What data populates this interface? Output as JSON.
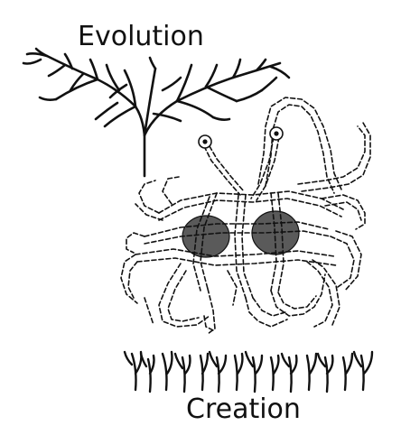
{
  "labels": {
    "top": "Evolution",
    "bottom": "Creation"
  },
  "colors": {
    "ink": "#111111",
    "background": "#ffffff"
  },
  "figures": {
    "top": "branching tree",
    "middle": "flying spaghetti monster",
    "bottom": "row of small branched sprouts"
  }
}
